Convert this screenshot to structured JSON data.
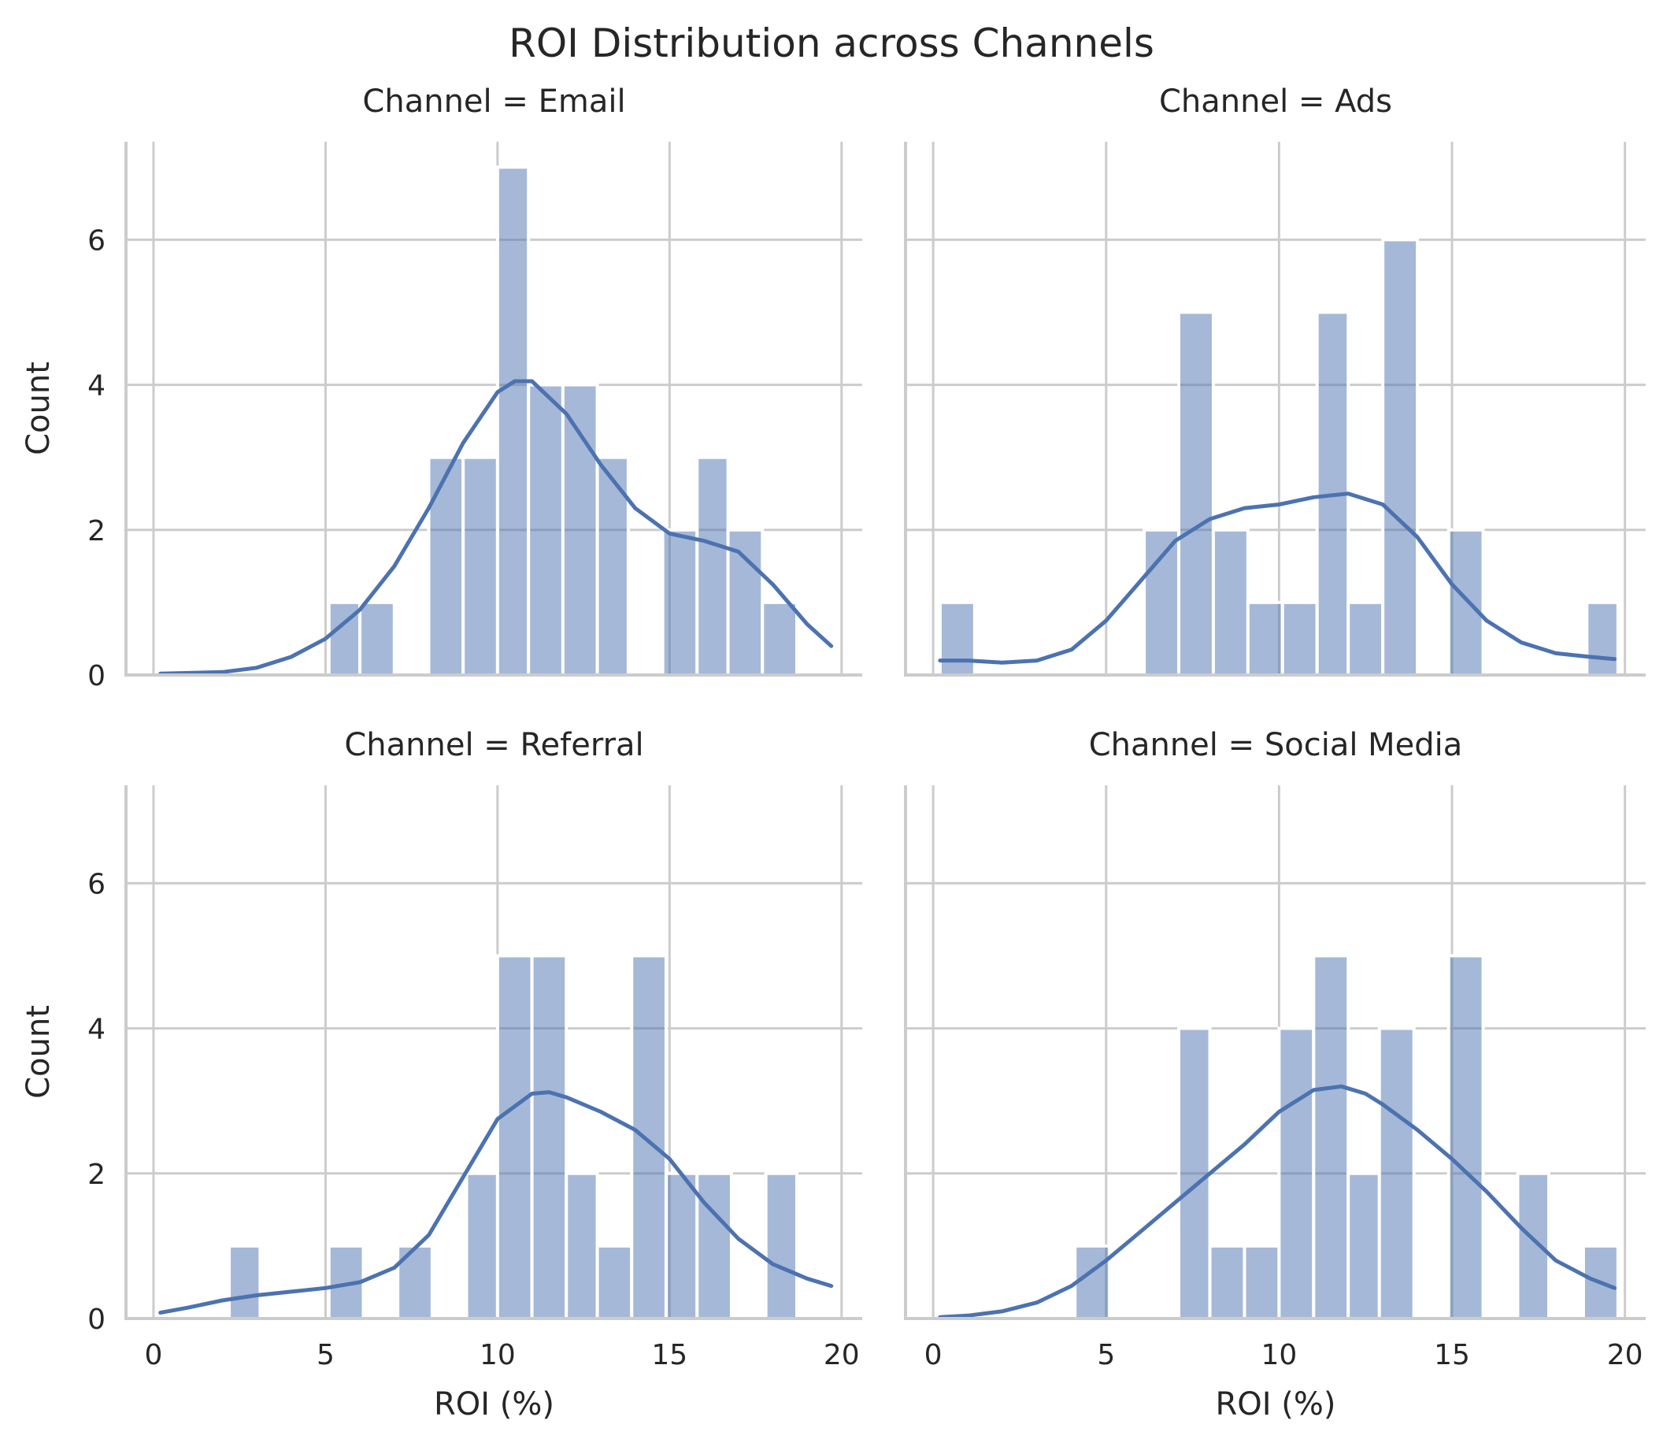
{
  "chart_data": {
    "type": "bar",
    "title": "ROI Distribution across Channels",
    "xlim": [
      -0.8,
      20.6
    ],
    "ylim": [
      0,
      7.35
    ],
    "xticks": [
      0,
      5,
      10,
      15,
      20
    ],
    "yticks": [
      0,
      2,
      4,
      6
    ],
    "grid": true,
    "panels": [
      {
        "title": "Channel = Email",
        "xlabel": "",
        "ylabel": "Count",
        "show_xticks": false,
        "show_yticks": true,
        "bins": [
          [
            5.1,
            6.0,
            1
          ],
          [
            6.0,
            7.0,
            1
          ],
          [
            8.0,
            9.0,
            3
          ],
          [
            9.0,
            10.0,
            3
          ],
          [
            10.0,
            10.9,
            7
          ],
          [
            10.9,
            11.9,
            4
          ],
          [
            11.9,
            12.9,
            4
          ],
          [
            12.9,
            13.8,
            3
          ],
          [
            14.8,
            15.8,
            2
          ],
          [
            15.8,
            16.7,
            3
          ],
          [
            16.7,
            17.7,
            2
          ],
          [
            17.7,
            18.7,
            1
          ]
        ],
        "kde": [
          [
            0.2,
            0.02
          ],
          [
            2,
            0.04
          ],
          [
            3,
            0.1
          ],
          [
            4,
            0.25
          ],
          [
            5,
            0.5
          ],
          [
            6,
            0.9
          ],
          [
            7,
            1.5
          ],
          [
            8,
            2.3
          ],
          [
            9,
            3.2
          ],
          [
            10,
            3.9
          ],
          [
            10.5,
            4.05
          ],
          [
            11,
            4.05
          ],
          [
            12,
            3.6
          ],
          [
            13,
            2.9
          ],
          [
            14,
            2.3
          ],
          [
            15,
            1.95
          ],
          [
            16,
            1.85
          ],
          [
            17,
            1.7
          ],
          [
            18,
            1.25
          ],
          [
            19,
            0.7
          ],
          [
            19.7,
            0.4
          ]
        ]
      },
      {
        "title": "Channel = Ads",
        "xlabel": "",
        "ylabel": "",
        "show_xticks": false,
        "show_yticks": false,
        "bins": [
          [
            0.2,
            1.2,
            1
          ],
          [
            6.1,
            7.1,
            2
          ],
          [
            7.1,
            8.1,
            5
          ],
          [
            8.1,
            9.1,
            2
          ],
          [
            9.1,
            10.1,
            1
          ],
          [
            10.1,
            11.1,
            1
          ],
          [
            11.1,
            12.0,
            5
          ],
          [
            12.0,
            13.0,
            1
          ],
          [
            13.0,
            14.0,
            6
          ],
          [
            14.9,
            15.9,
            2
          ],
          [
            18.9,
            19.8,
            1
          ]
        ],
        "kde": [
          [
            0.2,
            0.2
          ],
          [
            1,
            0.2
          ],
          [
            2,
            0.17
          ],
          [
            3,
            0.2
          ],
          [
            4,
            0.35
          ],
          [
            5,
            0.75
          ],
          [
            6,
            1.3
          ],
          [
            7,
            1.85
          ],
          [
            8,
            2.15
          ],
          [
            9,
            2.3
          ],
          [
            10,
            2.35
          ],
          [
            11,
            2.45
          ],
          [
            12,
            2.5
          ],
          [
            13,
            2.35
          ],
          [
            14,
            1.9
          ],
          [
            15,
            1.25
          ],
          [
            16,
            0.75
          ],
          [
            17,
            0.45
          ],
          [
            18,
            0.3
          ],
          [
            19,
            0.25
          ],
          [
            19.7,
            0.22
          ]
        ]
      },
      {
        "title": "Channel = Referral",
        "xlabel": "ROI (%)",
        "ylabel": "Count",
        "show_xticks": true,
        "show_yticks": true,
        "bins": [
          [
            2.2,
            3.1,
            1
          ],
          [
            5.1,
            6.1,
            1
          ],
          [
            7.1,
            8.1,
            1
          ],
          [
            9.1,
            10.0,
            2
          ],
          [
            10.0,
            11.0,
            5
          ],
          [
            11.0,
            12.0,
            5
          ],
          [
            12.0,
            12.9,
            2
          ],
          [
            12.9,
            13.9,
            1
          ],
          [
            13.9,
            14.9,
            5
          ],
          [
            14.9,
            15.8,
            2
          ],
          [
            15.8,
            16.8,
            2
          ],
          [
            17.8,
            18.7,
            2
          ]
        ],
        "kde": [
          [
            0.2,
            0.08
          ],
          [
            1,
            0.15
          ],
          [
            2,
            0.25
          ],
          [
            3,
            0.32
          ],
          [
            4,
            0.37
          ],
          [
            5,
            0.42
          ],
          [
            6,
            0.5
          ],
          [
            7,
            0.7
          ],
          [
            8,
            1.15
          ],
          [
            9,
            1.95
          ],
          [
            10,
            2.75
          ],
          [
            11,
            3.1
          ],
          [
            11.5,
            3.12
          ],
          [
            12,
            3.05
          ],
          [
            13,
            2.85
          ],
          [
            14,
            2.6
          ],
          [
            15,
            2.2
          ],
          [
            16,
            1.6
          ],
          [
            17,
            1.1
          ],
          [
            18,
            0.75
          ],
          [
            19,
            0.55
          ],
          [
            19.7,
            0.45
          ]
        ]
      },
      {
        "title": "Channel = Social Media",
        "xlabel": "ROI (%)",
        "ylabel": "",
        "show_xticks": true,
        "show_yticks": false,
        "bins": [
          [
            4.1,
            5.1,
            1
          ],
          [
            7.1,
            8.0,
            4
          ],
          [
            8.0,
            9.0,
            1
          ],
          [
            9.0,
            10.0,
            1
          ],
          [
            10.0,
            11.0,
            4
          ],
          [
            11.0,
            12.0,
            5
          ],
          [
            12.0,
            12.9,
            2
          ],
          [
            12.9,
            13.9,
            4
          ],
          [
            14.9,
            15.9,
            5
          ],
          [
            16.9,
            17.8,
            2
          ],
          [
            18.8,
            19.8,
            1
          ]
        ],
        "kde": [
          [
            0.2,
            0.02
          ],
          [
            1,
            0.04
          ],
          [
            2,
            0.1
          ],
          [
            3,
            0.22
          ],
          [
            4,
            0.45
          ],
          [
            5,
            0.8
          ],
          [
            6,
            1.2
          ],
          [
            7,
            1.6
          ],
          [
            8,
            2.0
          ],
          [
            9,
            2.4
          ],
          [
            10,
            2.85
          ],
          [
            11,
            3.15
          ],
          [
            11.8,
            3.2
          ],
          [
            12.5,
            3.1
          ],
          [
            13,
            2.95
          ],
          [
            14,
            2.6
          ],
          [
            15,
            2.2
          ],
          [
            16,
            1.75
          ],
          [
            17,
            1.25
          ],
          [
            18,
            0.8
          ],
          [
            19,
            0.55
          ],
          [
            19.7,
            0.42
          ]
        ]
      }
    ]
  }
}
